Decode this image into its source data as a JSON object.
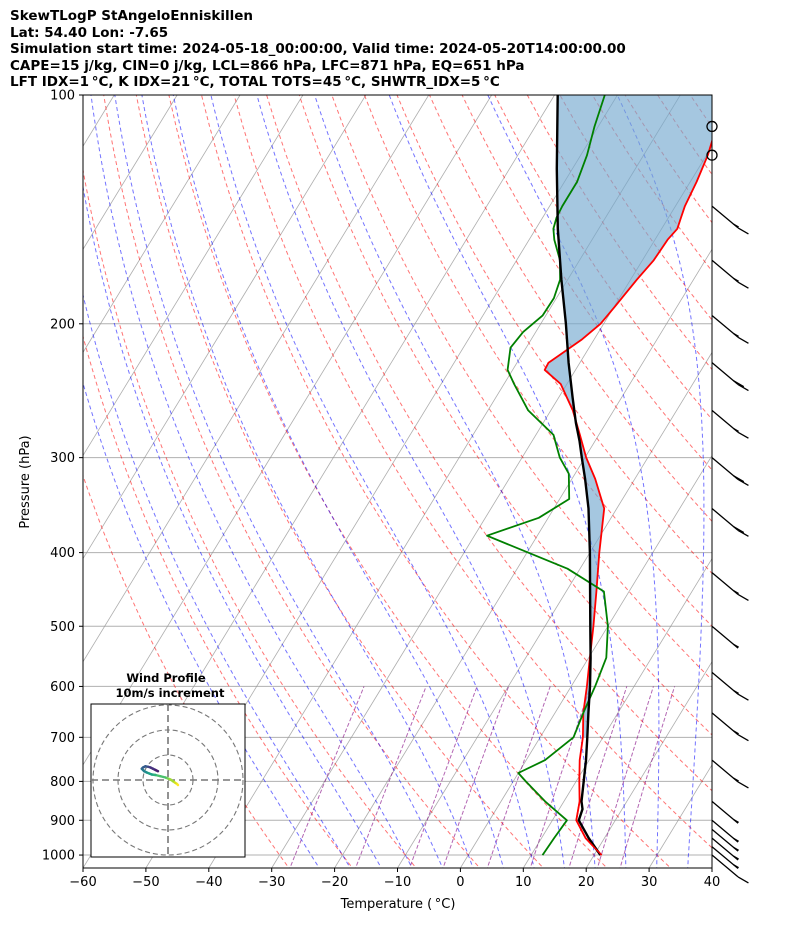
{
  "title_lines": [
    "SkewTLogP StAngeloEnniskillen",
    "Lat: 54.40   Lon: -7.65",
    "Simulation start time: 2024-05-18_00:00:00, Valid time: 2024-05-20T14:00:00.00",
    "CAPE=15 j/kg, CIN=0 j/kg, LCL=866 hPa, LFC=871 hPa, EQ=651 hPa",
    "LFT IDX=1 °C, K IDX=21 °C, TOTAL TOTS=45 °C, SHWTR_IDX=5 °C"
  ],
  "chart_data": {
    "type": "line",
    "xlabel": "Temperature ( °C)",
    "ylabel": "Pressure (hPa)",
    "xlim": [
      -60,
      40
    ],
    "ylim": [
      1040,
      100
    ],
    "y_scale": "log",
    "xticks": [
      -60,
      -50,
      -40,
      -30,
      -20,
      -10,
      0,
      10,
      20,
      30,
      40
    ],
    "yticks": [
      1000,
      900,
      800,
      700,
      600,
      500,
      400,
      300,
      200,
      100
    ],
    "colors": {
      "temperature": "#ff0000",
      "dewpoint": "#008000",
      "parcel": "#000000",
      "cape_fill": "#74a9cf",
      "dry_adiabats": "#ff0000",
      "moist_adiabats": "#0000ff",
      "mixing_ratio": "#800080",
      "isotherms": "#999999"
    },
    "series": [
      {
        "key": "temperature",
        "points": [
          [
            21.2,
            1000
          ],
          [
            17,
            950
          ],
          [
            13.8,
            900
          ],
          [
            12.5,
            850
          ],
          [
            10.5,
            800
          ],
          [
            8.5,
            750
          ],
          [
            6.8,
            700
          ],
          [
            4.5,
            650
          ],
          [
            2.5,
            600
          ],
          [
            0.2,
            550
          ],
          [
            -2.3,
            500
          ],
          [
            -5.2,
            450
          ],
          [
            -8.5,
            400
          ],
          [
            -12,
            350
          ],
          [
            -16.3,
            320
          ],
          [
            -19.8,
            300
          ],
          [
            -23,
            280
          ],
          [
            -26.5,
            260
          ],
          [
            -31,
            240
          ],
          [
            -34.9,
            230
          ],
          [
            -35,
            225
          ],
          [
            -34,
            220
          ],
          [
            -32,
            210
          ],
          [
            -30.5,
            200
          ],
          [
            -29.9,
            190
          ],
          [
            -29,
            175
          ],
          [
            -28.2,
            165
          ],
          [
            -28,
            155
          ],
          [
            -27.5,
            150
          ],
          [
            -28,
            145
          ],
          [
            -28.5,
            140
          ],
          [
            -29,
            130
          ],
          [
            -29.8,
            120
          ],
          [
            -31.2,
            110
          ],
          [
            -32.5,
            100
          ]
        ]
      },
      {
        "key": "dewpoint",
        "points": [
          [
            11.8,
            1000
          ],
          [
            12,
            950
          ],
          [
            12.3,
            900
          ],
          [
            7,
            850
          ],
          [
            2,
            800
          ],
          [
            0,
            780
          ],
          [
            3,
            750
          ],
          [
            5.3,
            700
          ],
          [
            4.5,
            650
          ],
          [
            3.8,
            600
          ],
          [
            2.8,
            550
          ],
          [
            0,
            500
          ],
          [
            -4,
            450
          ],
          [
            -12,
            420
          ],
          [
            -28,
            380
          ],
          [
            -21.5,
            360
          ],
          [
            -18.5,
            340
          ],
          [
            -21,
            315
          ],
          [
            -24,
            300
          ],
          [
            -27.2,
            280
          ],
          [
            -33.6,
            260
          ],
          [
            -38.4,
            240
          ],
          [
            -40.8,
            230
          ],
          [
            -42.5,
            215
          ],
          [
            -42,
            205
          ],
          [
            -40.5,
            195
          ],
          [
            -40.4,
            185
          ],
          [
            -41.2,
            175
          ],
          [
            -43.1,
            165
          ],
          [
            -46,
            155
          ],
          [
            -47.2,
            150
          ],
          [
            -47.8,
            145
          ],
          [
            -48,
            140
          ],
          [
            -48,
            130
          ],
          [
            -49,
            120
          ],
          [
            -50.6,
            110
          ],
          [
            -52,
            100
          ]
        ]
      },
      {
        "key": "parcel",
        "points": [
          [
            21,
            1000
          ],
          [
            17.5,
            950
          ],
          [
            14.2,
            900
          ],
          [
            13.7,
            870
          ],
          [
            12.8,
            850
          ],
          [
            11.2,
            800
          ],
          [
            9.5,
            750
          ],
          [
            7.5,
            700
          ],
          [
            5.3,
            650
          ],
          [
            3,
            600
          ],
          [
            0.3,
            550
          ],
          [
            -2.8,
            500
          ],
          [
            -6.2,
            450
          ],
          [
            -10,
            400
          ],
          [
            -14.5,
            350
          ],
          [
            -17.9,
            320
          ],
          [
            -20.5,
            300
          ],
          [
            -22.5,
            285
          ],
          [
            -24.8,
            270
          ],
          [
            -27.8,
            250
          ],
          [
            -31.8,
            225
          ],
          [
            -36,
            200
          ],
          [
            -41,
            175
          ],
          [
            -46.5,
            150
          ],
          [
            -52.5,
            125
          ],
          [
            -59.5,
            100
          ]
        ]
      }
    ],
    "wind_barbs": [
      {
        "p": 1000,
        "half": 0,
        "full": 1
      },
      {
        "p": 975,
        "half": 1,
        "full": 0
      },
      {
        "p": 950,
        "half": 1,
        "full": 0
      },
      {
        "p": 925,
        "half": 1,
        "full": 0
      },
      {
        "p": 900,
        "half": 1,
        "full": 0
      },
      {
        "p": 850,
        "half": 1,
        "full": 0
      },
      {
        "p": 750,
        "half": 1,
        "full": 1
      },
      {
        "p": 650,
        "half": 1,
        "full": 1
      },
      {
        "p": 575,
        "half": 1,
        "full": 1
      },
      {
        "p": 500,
        "half": 1,
        "full": 0
      },
      {
        "p": 425,
        "half": 1,
        "full": 1
      },
      {
        "p": 350,
        "half": 0,
        "full": 2
      },
      {
        "p": 300,
        "half": 0,
        "full": 2
      },
      {
        "p": 260,
        "half": 1,
        "full": 1
      },
      {
        "p": 225,
        "half": 0,
        "full": 2
      },
      {
        "p": 195,
        "half": 1,
        "full": 1
      },
      {
        "p": 165,
        "half": 1,
        "full": 1
      },
      {
        "p": 140,
        "half": 1,
        "full": 1
      },
      {
        "p": 120,
        "calm": true
      },
      {
        "p": 110,
        "calm": true
      }
    ],
    "hodograph": {
      "title": "Wind Profile",
      "subtitle": "10m/s increment",
      "ring_step_ms": 10,
      "rings": 3,
      "points": [
        [
          4,
          -2
        ],
        [
          3.5,
          -1.5
        ],
        [
          3,
          -1.2
        ],
        [
          2,
          -0.5
        ],
        [
          1,
          0.2
        ],
        [
          0,
          0.6
        ],
        [
          -1,
          1
        ],
        [
          -3,
          1.5
        ],
        [
          -5,
          2
        ],
        [
          -6.5,
          2.2
        ],
        [
          -7.5,
          2.6
        ],
        [
          -8.5,
          3
        ],
        [
          -9.5,
          3.5
        ],
        [
          -10,
          4
        ],
        [
          -10.5,
          4.5
        ],
        [
          -10,
          5
        ],
        [
          -9,
          5.5
        ],
        [
          -8,
          5.3
        ],
        [
          -7,
          5
        ],
        [
          -6,
          4.5
        ],
        [
          -5,
          4
        ],
        [
          -4,
          3.5
        ]
      ]
    }
  }
}
